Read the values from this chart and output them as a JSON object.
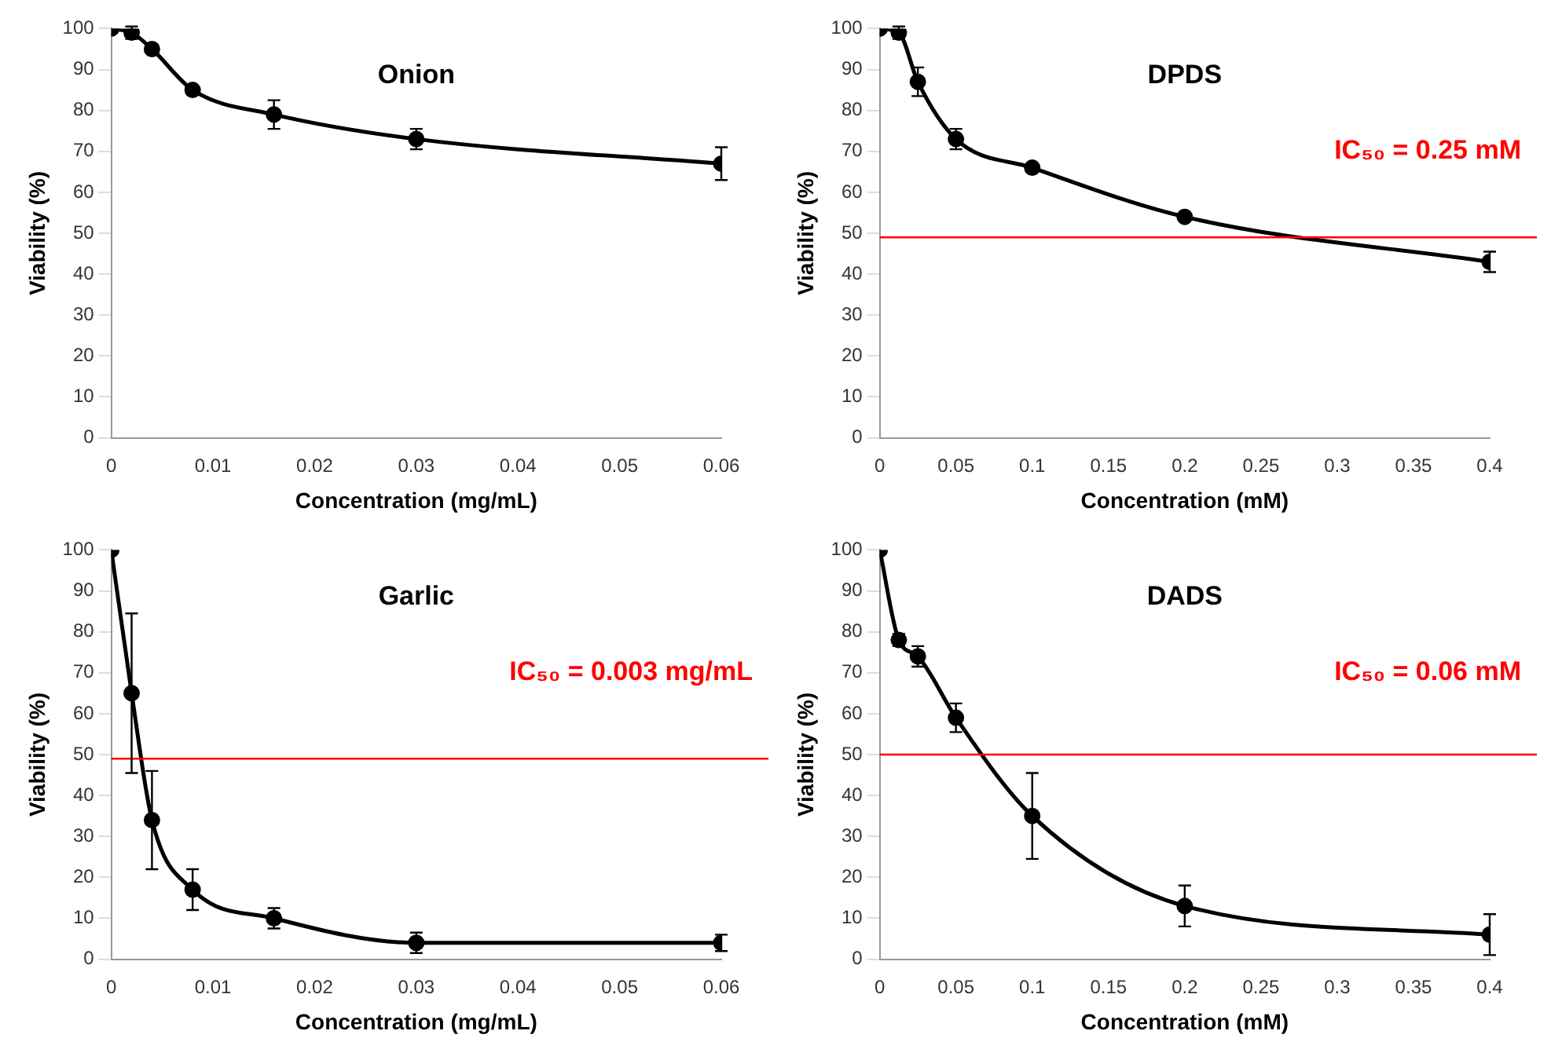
{
  "chart_data": [
    {
      "type": "line",
      "title": "Onion",
      "xlabel": "Concentration (mg/mL)",
      "ylabel": "Viability (%)",
      "x": [
        0,
        0.002,
        0.004,
        0.008,
        0.016,
        0.03,
        0.06
      ],
      "series": [
        {
          "color": "#000000",
          "values": [
            100,
            99,
            95,
            85,
            79,
            73,
            67
          ],
          "errors": [
            null,
            1.5,
            1,
            0.8,
            3.5,
            2.5,
            4
          ]
        }
      ],
      "xlim": [
        0,
        0.06
      ],
      "xticks": [
        0,
        0.01,
        0.02,
        0.03,
        0.04,
        0.05,
        0.06
      ],
      "ylim": [
        0,
        100
      ],
      "yticks": [
        0,
        10,
        20,
        30,
        40,
        50,
        60,
        70,
        80,
        90,
        100
      ],
      "grid": false,
      "legend": false,
      "marker": "circle",
      "line_style": "solid"
    },
    {
      "type": "line",
      "title": "DPDS",
      "xlabel": "Concentration (mM)",
      "ylabel": "Viability (%)",
      "x": [
        0,
        0.0125,
        0.025,
        0.05,
        0.1,
        0.2,
        0.4
      ],
      "series": [
        {
          "color": "#000000",
          "values": [
            100,
            99,
            87,
            73,
            66,
            54,
            43
          ],
          "errors": [
            null,
            1.5,
            3.5,
            2.5,
            0.8,
            0.8,
            2.5
          ]
        }
      ],
      "xlim": [
        0,
        0.4
      ],
      "xticks": [
        0,
        0.05,
        0.1,
        0.15,
        0.2,
        0.25,
        0.3,
        0.35,
        0.4
      ],
      "ylim": [
        0,
        100
      ],
      "yticks": [
        0,
        10,
        20,
        30,
        40,
        50,
        60,
        70,
        80,
        90,
        100
      ],
      "grid": false,
      "legend": false,
      "marker": "circle",
      "line_style": "solid",
      "ref_lines": [
        {
          "axis": "y",
          "value": 49,
          "color": "#ff0000"
        }
      ],
      "annotations": [
        "IC₅₀ = 0.25 mM"
      ]
    },
    {
      "type": "line",
      "title": "Garlic",
      "xlabel": "Concentration (mg/mL)",
      "ylabel": "Viability (%)",
      "x": [
        0,
        0.002,
        0.004,
        0.008,
        0.016,
        0.03,
        0.06
      ],
      "series": [
        {
          "color": "#000000",
          "values": [
            100,
            65,
            34,
            17,
            10,
            4,
            4
          ],
          "errors": [
            null,
            19.5,
            12,
            5,
            2.5,
            2.5,
            2
          ]
        }
      ],
      "xlim": [
        0,
        0.06
      ],
      "xticks": [
        0,
        0.01,
        0.02,
        0.03,
        0.04,
        0.05,
        0.06
      ],
      "ylim": [
        0,
        100
      ],
      "yticks": [
        0,
        10,
        20,
        30,
        40,
        50,
        60,
        70,
        80,
        90,
        100
      ],
      "grid": false,
      "legend": false,
      "marker": "circle",
      "line_style": "solid",
      "ref_lines": [
        {
          "axis": "y",
          "value": 49,
          "color": "#ff0000"
        }
      ],
      "annotations": [
        "IC₅₀ = 0.003 mg/mL"
      ]
    },
    {
      "type": "line",
      "title": "DADS",
      "xlabel": "Concentration (mM)",
      "ylabel": "Viability (%)",
      "x": [
        0,
        0.0125,
        0.025,
        0.05,
        0.1,
        0.2,
        0.4
      ],
      "series": [
        {
          "color": "#000000",
          "values": [
            100,
            78,
            74,
            59,
            35,
            13,
            6
          ],
          "errors": [
            null,
            1.5,
            2.5,
            3.5,
            10.5,
            5,
            5
          ]
        }
      ],
      "xlim": [
        0,
        0.4
      ],
      "xticks": [
        0,
        0.05,
        0.1,
        0.15,
        0.2,
        0.25,
        0.3,
        0.35,
        0.4
      ],
      "ylim": [
        0,
        100
      ],
      "yticks": [
        0,
        10,
        20,
        30,
        40,
        50,
        60,
        70,
        80,
        90,
        100
      ],
      "grid": false,
      "legend": false,
      "marker": "circle",
      "line_style": "solid",
      "ref_lines": [
        {
          "axis": "y",
          "value": 50,
          "color": "#ff0000"
        }
      ],
      "annotations": [
        "IC₅₀ = 0.06 mM"
      ]
    }
  ]
}
